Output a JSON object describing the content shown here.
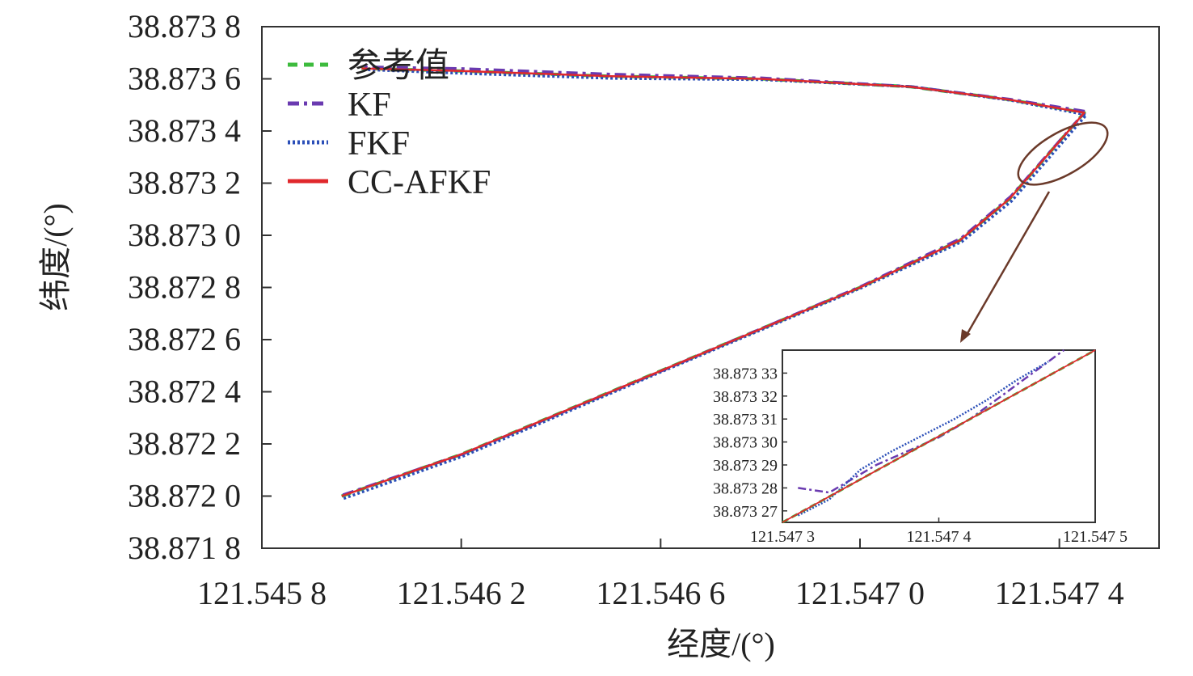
{
  "chart_data": {
    "type": "line",
    "xlabel": "经度/(°)",
    "ylabel": "纬度/(°)",
    "xlim": [
      121.5458,
      121.5476
    ],
    "ylim": [
      38.8718,
      38.8738
    ],
    "x_ticks": [
      121.5458,
      121.5462,
      121.5466,
      121.547,
      121.5474
    ],
    "x_tick_labels": [
      "121.545 8",
      "121.546 2",
      "121.546 6",
      "121.547 0",
      "121.547 4"
    ],
    "y_ticks": [
      38.8718,
      38.872,
      38.8722,
      38.8724,
      38.8726,
      38.8728,
      38.873,
      38.8732,
      38.8734,
      38.8736,
      38.8738
    ],
    "y_tick_labels": [
      "38.871 8",
      "38.872 0",
      "38.872 2",
      "38.872 4",
      "38.872 6",
      "38.872 8",
      "38.873 0",
      "38.873 2",
      "38.873 4",
      "38.873 6",
      "38.873 8"
    ],
    "legend_position": "top-left",
    "series": [
      {
        "name": "参考值",
        "color": "#3dbb3d",
        "dash": "dashed",
        "x": [
          121.54596,
          121.5462,
          121.5466,
          121.547,
          121.5472,
          121.5473,
          121.54745,
          121.5473,
          121.5471,
          121.5468,
          121.5465,
          121.5462,
          121.546
        ],
        "y": [
          38.872,
          38.87216,
          38.87248,
          38.8728,
          38.87298,
          38.87314,
          38.87347,
          38.87352,
          38.87357,
          38.8736,
          38.87361,
          38.87363,
          38.87364
        ]
      },
      {
        "name": "KF",
        "color": "#6a3ab0",
        "dash": "dashdot",
        "x": [
          121.54596,
          121.5462,
          121.5466,
          121.547,
          121.5472,
          121.5473,
          121.54745,
          121.5473,
          121.5471,
          121.5468,
          121.5465,
          121.5462,
          121.546
        ],
        "y": [
          38.872,
          38.87216,
          38.87248,
          38.8728,
          38.87298,
          38.87314,
          38.87347,
          38.87352,
          38.87357,
          38.8736,
          38.87361,
          38.87363,
          38.87364
        ]
      },
      {
        "name": "FKF",
        "color": "#2b4fb8",
        "dash": "dotted",
        "x": [
          121.54596,
          121.5462,
          121.5466,
          121.547,
          121.5472,
          121.5473,
          121.54745,
          121.5473,
          121.5471,
          121.5468,
          121.5465,
          121.5462,
          121.546
        ],
        "y": [
          38.872,
          38.87216,
          38.87248,
          38.8728,
          38.87298,
          38.87314,
          38.87347,
          38.87352,
          38.87357,
          38.8736,
          38.87361,
          38.87363,
          38.87364
        ]
      },
      {
        "name": "CC-AFKF",
        "color": "#e0282c",
        "dash": "solid",
        "x": [
          121.54596,
          121.5462,
          121.5466,
          121.547,
          121.5472,
          121.5473,
          121.54745,
          121.5473,
          121.5471,
          121.5468,
          121.5465,
          121.5462,
          121.546
        ],
        "y": [
          38.872,
          38.87216,
          38.87248,
          38.8728,
          38.87298,
          38.87314,
          38.87347,
          38.87352,
          38.87357,
          38.8736,
          38.87361,
          38.87363,
          38.87364
        ]
      }
    ],
    "inset": {
      "xlim": [
        121.5473,
        121.5475
      ],
      "ylim": [
        38.873265,
        38.87334
      ],
      "x_ticks": [
        121.5473,
        121.5474,
        121.5475
      ],
      "x_tick_labels": [
        "121.547 3",
        "121.547 4",
        "121.547 5"
      ],
      "y_ticks": [
        38.87327,
        38.87328,
        38.87329,
        38.8733,
        38.87331,
        38.87332,
        38.87333
      ],
      "y_tick_labels": [
        "38.873 27",
        "38.873 28",
        "38.873 29",
        "38.873 30",
        "38.873 31",
        "38.873 32",
        "38.873 33"
      ],
      "reference_x": [
        121.5473,
        121.5475
      ],
      "reference_y": [
        38.873265,
        38.87334
      ],
      "kf_x": [
        121.54731,
        121.54733,
        121.54736,
        121.54738,
        121.5474,
        121.54742,
        121.54744,
        121.54746,
        121.54748
      ],
      "kf_y": [
        38.87328,
        38.873278,
        38.87329,
        38.873296,
        38.873302,
        38.87331,
        38.87332,
        38.87333,
        38.87334
      ],
      "fkf_x": [
        121.54731,
        121.54733,
        121.54735,
        121.54737,
        121.54739,
        121.54741,
        121.54743,
        121.54745,
        121.54747
      ],
      "fkf_y": [
        38.873268,
        38.873275,
        38.873288,
        38.873296,
        38.873303,
        38.87331,
        38.873318,
        38.873327,
        38.873335
      ]
    }
  }
}
